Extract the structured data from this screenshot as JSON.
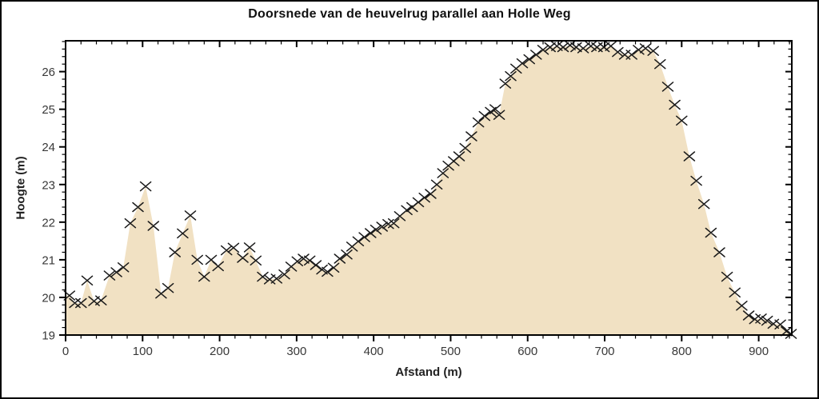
{
  "frame": {
    "background": "#ffffff",
    "border_color": "#000000"
  },
  "chart_data": {
    "type": "area",
    "title": "Doorsnede van de heuvelrug parallel aan Holle Weg",
    "xlabel": "Afstand (m)",
    "ylabel": "Hoogte (m)",
    "xlim": [
      0,
      943
    ],
    "ylim": [
      19,
      26.82
    ],
    "grid": false,
    "legend_position": "none",
    "marker": "x",
    "marker_color": "#1b1b1b",
    "fill_color": "#f1e1c3",
    "axis_color": "#000000",
    "tick_label_color": "#383838",
    "x_major_ticks": [
      0,
      100,
      200,
      300,
      400,
      500,
      600,
      700,
      800,
      900
    ],
    "x_tick_labels": [
      "0",
      "100",
      "200",
      "300",
      "400",
      "500",
      "600",
      "700",
      "800",
      "900"
    ],
    "x_minor_step": 20,
    "y_major_ticks": [
      19,
      20,
      21,
      22,
      23,
      24,
      25,
      26
    ],
    "y_tick_labels": [
      "19",
      "20",
      "21",
      "22",
      "23",
      "24",
      "25",
      "26"
    ],
    "y_minor_step": 0.2,
    "points": [
      [
        5,
        20.05
      ],
      [
        12,
        19.85
      ],
      [
        20,
        19.85
      ],
      [
        28,
        20.45
      ],
      [
        37,
        19.9
      ],
      [
        46,
        19.92
      ],
      [
        57,
        20.58
      ],
      [
        66,
        20.67
      ],
      [
        75,
        20.8
      ],
      [
        84,
        21.97
      ],
      [
        94,
        22.4
      ],
      [
        104,
        22.95
      ],
      [
        114,
        21.9
      ],
      [
        124,
        20.1
      ],
      [
        133,
        20.25
      ],
      [
        142,
        21.2
      ],
      [
        152,
        21.7
      ],
      [
        162,
        22.18
      ],
      [
        171,
        21.0
      ],
      [
        180,
        20.55
      ],
      [
        189,
        21.0
      ],
      [
        198,
        20.83
      ],
      [
        209,
        21.25
      ],
      [
        218,
        21.32
      ],
      [
        230,
        21.05
      ],
      [
        239,
        21.33
      ],
      [
        247,
        20.98
      ],
      [
        256,
        20.55
      ],
      [
        265,
        20.48
      ],
      [
        274,
        20.5
      ],
      [
        284,
        20.61
      ],
      [
        293,
        20.82
      ],
      [
        301,
        20.96
      ],
      [
        309,
        21.03
      ],
      [
        317,
        20.98
      ],
      [
        325,
        20.86
      ],
      [
        333,
        20.74
      ],
      [
        340,
        20.68
      ],
      [
        348,
        20.79
      ],
      [
        356,
        21.03
      ],
      [
        365,
        21.14
      ],
      [
        372,
        21.35
      ],
      [
        380,
        21.49
      ],
      [
        388,
        21.6
      ],
      [
        396,
        21.71
      ],
      [
        403,
        21.8
      ],
      [
        411,
        21.88
      ],
      [
        419,
        21.95
      ],
      [
        426,
        21.97
      ],
      [
        434,
        22.16
      ],
      [
        443,
        22.32
      ],
      [
        450,
        22.4
      ],
      [
        458,
        22.53
      ],
      [
        466,
        22.65
      ],
      [
        474,
        22.75
      ],
      [
        482,
        23.0
      ],
      [
        490,
        23.3
      ],
      [
        497,
        23.5
      ],
      [
        504,
        23.62
      ],
      [
        511,
        23.75
      ],
      [
        519,
        23.97
      ],
      [
        527,
        24.28
      ],
      [
        536,
        24.65
      ],
      [
        544,
        24.82
      ],
      [
        552,
        24.93
      ],
      [
        558,
        25.0
      ],
      [
        563,
        24.85
      ],
      [
        571,
        25.68
      ],
      [
        578,
        25.88
      ],
      [
        585,
        26.08
      ],
      [
        593,
        26.22
      ],
      [
        602,
        26.33
      ],
      [
        611,
        26.45
      ],
      [
        620,
        26.58
      ],
      [
        629,
        26.65
      ],
      [
        638,
        26.68
      ],
      [
        646,
        26.65
      ],
      [
        655,
        26.7
      ],
      [
        663,
        26.65
      ],
      [
        672,
        26.62
      ],
      [
        682,
        26.68
      ],
      [
        690,
        26.65
      ],
      [
        699,
        26.65
      ],
      [
        708,
        26.68
      ],
      [
        717,
        26.52
      ],
      [
        726,
        26.45
      ],
      [
        735,
        26.45
      ],
      [
        744,
        26.58
      ],
      [
        753,
        26.62
      ],
      [
        763,
        26.55
      ],
      [
        772,
        26.2
      ],
      [
        782,
        25.6
      ],
      [
        791,
        25.12
      ],
      [
        800,
        24.7
      ],
      [
        810,
        23.75
      ],
      [
        819,
        23.1
      ],
      [
        829,
        22.48
      ],
      [
        838,
        21.72
      ],
      [
        849,
        21.2
      ],
      [
        859,
        20.55
      ],
      [
        869,
        20.13
      ],
      [
        878,
        19.78
      ],
      [
        887,
        19.52
      ],
      [
        895,
        19.42
      ],
      [
        903,
        19.44
      ],
      [
        911,
        19.38
      ],
      [
        919,
        19.3
      ],
      [
        928,
        19.28
      ],
      [
        936,
        19.1
      ],
      [
        942,
        19.03
      ]
    ]
  }
}
